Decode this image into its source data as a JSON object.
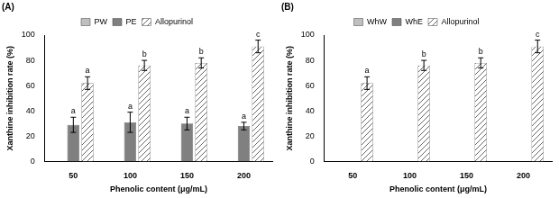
{
  "chart_data": [
    {
      "type": "bar",
      "title": "(A)",
      "x_label": "Phenolic content (μg/mL)",
      "y_label": "Xanthine inhibition rate (%)",
      "categories": [
        "50",
        "100",
        "150",
        "200"
      ],
      "series": [
        {
          "name": "PW",
          "color": "#bfbfbf",
          "values": [
            null,
            null,
            null,
            null
          ],
          "errors": [
            null,
            null,
            null,
            null
          ],
          "letters": [
            null,
            null,
            null,
            null
          ]
        },
        {
          "name": "PE",
          "color": "#808080",
          "values": [
            29,
            31,
            30,
            28
          ],
          "errors": [
            6,
            8,
            5,
            3
          ],
          "letters": [
            "a",
            "a",
            "a",
            "a"
          ]
        },
        {
          "name": "Allopurinol",
          "color": "#d9d9d9",
          "values": [
            62,
            76,
            78,
            91
          ],
          "errors": [
            5,
            4,
            4,
            5
          ],
          "letters": [
            "a",
            "b",
            "b",
            "c"
          ]
        }
      ],
      "ylim": [
        0,
        100
      ],
      "yticks": [
        0,
        20,
        40,
        60,
        80,
        100
      ],
      "grid": false,
      "legend": "top"
    },
    {
      "type": "bar",
      "title": "(B)",
      "x_label": "Phenolic content (μg/mL)",
      "y_label": "Xanthine inhibition rate (%)",
      "categories": [
        "50",
        "100",
        "150",
        "200"
      ],
      "series": [
        {
          "name": "WhW",
          "color": "#bfbfbf",
          "values": [
            null,
            null,
            null,
            null
          ],
          "errors": [
            null,
            null,
            null,
            null
          ],
          "letters": [
            null,
            null,
            null,
            null
          ]
        },
        {
          "name": "WhE",
          "color": "#808080",
          "values": [
            null,
            null,
            null,
            null
          ],
          "errors": [
            null,
            null,
            null,
            null
          ],
          "letters": [
            null,
            null,
            null,
            null
          ]
        },
        {
          "name": "Allopurinol",
          "color": "#d9d9d9",
          "values": [
            62,
            76,
            78,
            91
          ],
          "errors": [
            5,
            4,
            4,
            5
          ],
          "letters": [
            "a",
            "b",
            "b",
            "c"
          ]
        }
      ],
      "ylim": [
        0,
        100
      ],
      "yticks": [
        0,
        20,
        40,
        60,
        80,
        100
      ],
      "grid": false,
      "legend": "top"
    }
  ]
}
